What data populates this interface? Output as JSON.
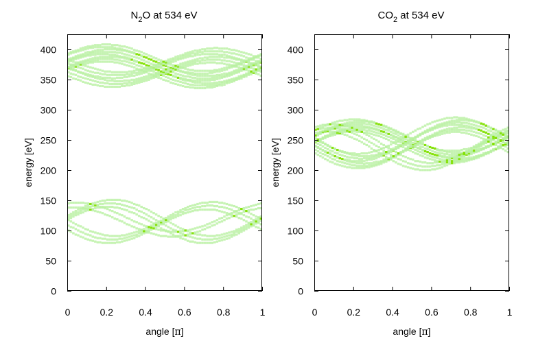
{
  "chart_data": [
    {
      "type": "heatmap",
      "title": {
        "pre": "N",
        "sub": "2",
        "post": "O at 534 eV"
      },
      "xlabel": {
        "pre": "angle [",
        "sym": "π",
        "post": "]"
      },
      "ylabel": "energy [eV]",
      "xlim": [
        0,
        1
      ],
      "ylim": [
        0,
        425
      ],
      "xticks": [
        "0",
        "0.2",
        "0.4",
        "0.6",
        "0.8",
        "1"
      ],
      "yticks": [
        "0",
        "50",
        "100",
        "150",
        "200",
        "250",
        "300",
        "350",
        "400"
      ],
      "grid": false,
      "colors": {
        "low": "#b8f0a0",
        "mid": "#7fe000",
        "high": "#00a0c0"
      },
      "bands": [
        {
          "offset": 372,
          "amplitude": 22,
          "phase": 0.2,
          "spread": 14,
          "count": 8
        },
        {
          "offset": 370,
          "amplitude": 20,
          "phase": 0.75,
          "spread": 12,
          "count": 6
        },
        {
          "offset": 115,
          "amplitude": 30,
          "phase": 0.22,
          "spread": 6,
          "count": 3
        },
        {
          "offset": 113,
          "amplitude": 28,
          "phase": 0.73,
          "spread": 6,
          "count": 3
        },
        {
          "offset": 118,
          "amplitude": 24,
          "phase": 0.05,
          "spread": 4,
          "count": 2
        }
      ]
    },
    {
      "type": "heatmap",
      "title": {
        "pre": "CO",
        "sub": "2",
        "post": " at 534 eV"
      },
      "xlabel": {
        "pre": "angle [",
        "sym": "π",
        "post": "]"
      },
      "ylabel": "energy [eV]",
      "xlim": [
        0,
        1
      ],
      "ylim": [
        0,
        425
      ],
      "xticks": [
        "0",
        "0.2",
        "0.4",
        "0.6",
        "0.8",
        "1"
      ],
      "yticks": [
        "0",
        "50",
        "100",
        "150",
        "200",
        "250",
        "300",
        "350",
        "400"
      ],
      "grid": false,
      "colors": {
        "low": "#b8f0a0",
        "mid": "#7fe000",
        "high": "#00a0c0"
      },
      "bands": [
        {
          "offset": 248,
          "amplitude": 26,
          "phase": 0.22,
          "spread": 10,
          "count": 7
        },
        {
          "offset": 245,
          "amplitude": 30,
          "phase": 0.74,
          "spread": 12,
          "count": 7
        },
        {
          "offset": 238,
          "amplitude": 32,
          "phase": 0.08,
          "spread": 6,
          "count": 3
        }
      ]
    }
  ]
}
